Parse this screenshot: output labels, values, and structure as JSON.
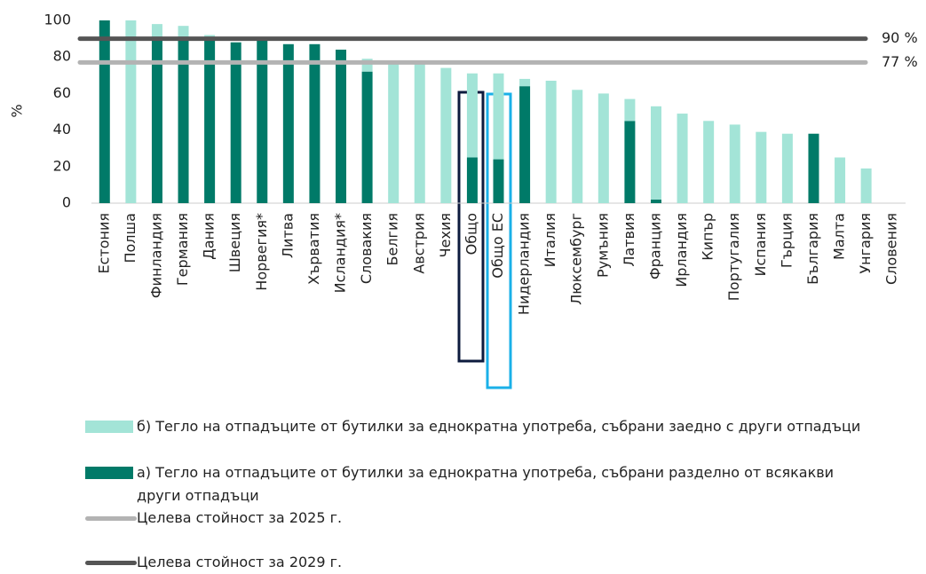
{
  "chart_data": {
    "type": "bar",
    "stacked": true,
    "ylabel": "%",
    "categories": [
      "Естония",
      "Полша",
      "Финландия",
      "Германия",
      "Дания",
      "Швеция",
      "Норвегия*",
      "Литва",
      "Хърватия",
      "Исландия*",
      "Словакия",
      "Белгия",
      "Австрия",
      "Чехия",
      "Общо",
      "Общо ЕС",
      "Нидерландия",
      "Италия",
      "Люксембург",
      "Румъния",
      "Латвия",
      "Франция",
      "Ирландия",
      "Кипър",
      "Португалия",
      "Испания",
      "Гърция",
      "България",
      "Малта",
      "Унгария",
      "Словения"
    ],
    "series": [
      {
        "name": "а) Тегло на отпадъците от бутилки за еднократна употреба, събрани разделно от всякакви други отпадъци",
        "color": "#007a68",
        "values": [
          100,
          0,
          90,
          90,
          91,
          88,
          90,
          87,
          87,
          84,
          72,
          0,
          0,
          0,
          25,
          24,
          64,
          0,
          0,
          0,
          45,
          2,
          0,
          0,
          0,
          0,
          0,
          38,
          0,
          0,
          0
        ]
      },
      {
        "name": "б) Тегло на отпадъците от бутилки за еднократна употреба, събрани заедно с други отпадъци",
        "color": "#a3e4d7",
        "values": [
          0,
          100,
          8,
          7,
          1,
          0,
          0,
          0,
          0,
          0,
          7,
          76,
          77,
          74,
          46,
          47,
          4,
          67,
          62,
          60,
          12,
          51,
          49,
          45,
          43,
          39,
          38,
          0,
          25,
          19,
          0
        ]
      }
    ],
    "targets": [
      {
        "name": "Целева стойност за 2025 г.",
        "value": 77,
        "label": "77 %",
        "color": "#b3b3b3"
      },
      {
        "name": "Целева стойност за 2029 г.",
        "value": 90,
        "label": "90 %",
        "color": "#555555"
      }
    ],
    "ylim": [
      0,
      100
    ],
    "yticks": [
      0,
      20,
      40,
      60,
      80,
      100
    ],
    "grid": false
  }
}
